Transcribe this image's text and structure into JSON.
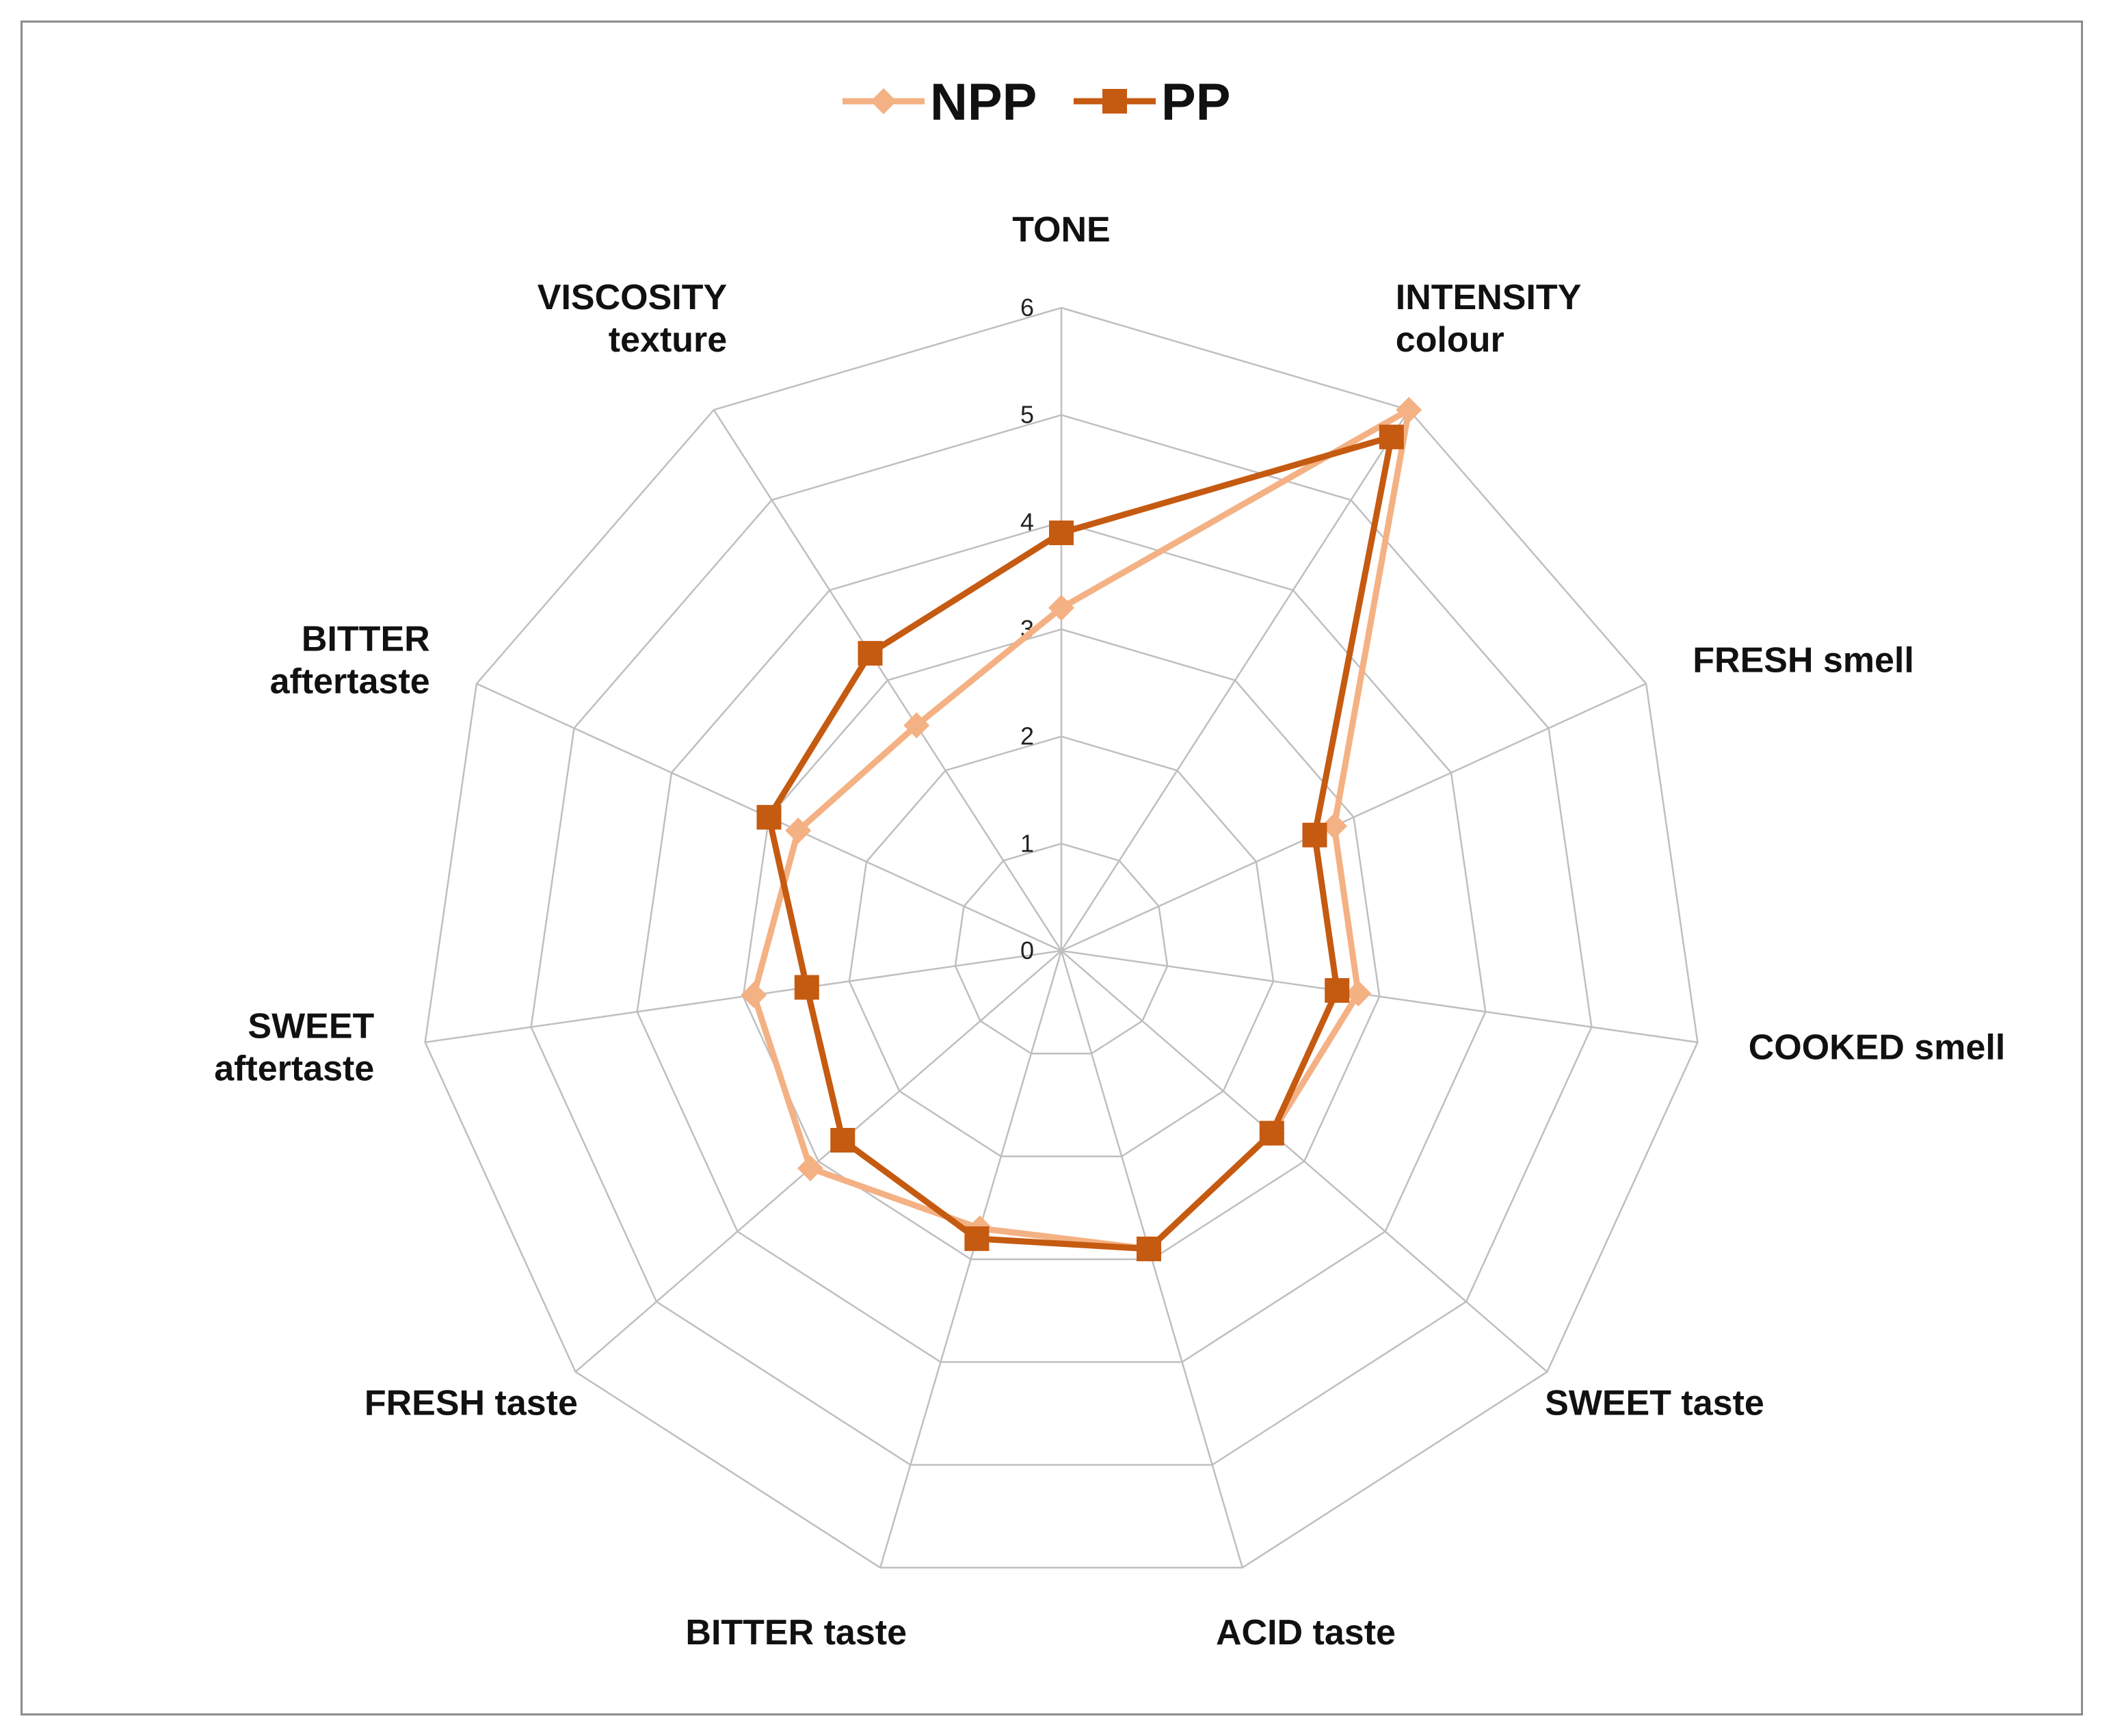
{
  "chart_data": {
    "type": "radar",
    "title": "",
    "categories": [
      [
        "TONE"
      ],
      [
        "INTENSITY",
        "colour"
      ],
      [
        "FRESH smell"
      ],
      [
        "COOKED smell"
      ],
      [
        "SWEET taste"
      ],
      [
        "ACID taste"
      ],
      [
        "BITTER taste"
      ],
      [
        "FRESH taste"
      ],
      [
        "SWEET",
        "aftertaste"
      ],
      [
        "BITTER",
        "aftertaste"
      ],
      [
        "VISCOSITY",
        "texture"
      ]
    ],
    "rlim": [
      0,
      6
    ],
    "ticks": [
      "0",
      "1",
      "2",
      "3",
      "4",
      "5",
      "6"
    ],
    "series": [
      {
        "name": "NPP",
        "color": "#f4b183",
        "marker": "diamond",
        "values": [
          3.2,
          6.0,
          2.8,
          2.8,
          2.6,
          2.9,
          2.7,
          3.1,
          2.9,
          2.7,
          2.5
        ]
      },
      {
        "name": "PP",
        "color": "#c55a11",
        "marker": "square",
        "values": [
          3.9,
          5.7,
          2.6,
          2.6,
          2.6,
          2.9,
          2.8,
          2.7,
          2.4,
          3.0,
          3.3
        ]
      }
    ],
    "legend_position": "top-center",
    "grid": true
  }
}
